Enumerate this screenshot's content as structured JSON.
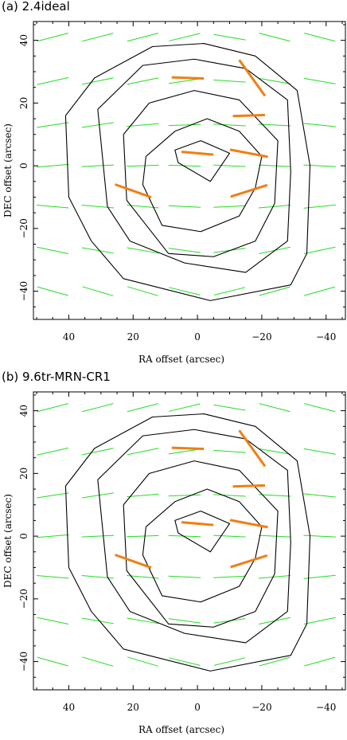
{
  "colors": {
    "frame": "#000000",
    "contour": "#000000",
    "vector_green": "#22dd22",
    "vector_orange": "#f07f13"
  },
  "chart_data": [
    {
      "id": "a",
      "type": "vector-contour map",
      "title": "(a) 2.4ideal",
      "xlabel": "RA offset (arcsec)",
      "ylabel": "DEC offset (arcsec)",
      "xlim": [
        51,
        -46
      ],
      "ylim": [
        -49,
        46
      ],
      "x_inverted": true,
      "x_ticks": [
        40,
        20,
        0,
        -20,
        -40
      ],
      "y_ticks": [
        40,
        20,
        0,
        -20,
        -40
      ],
      "contours": [
        [
          [
            7,
            5
          ],
          [
            -1,
            8
          ],
          [
            -10,
            4
          ],
          [
            -4,
            -5
          ],
          [
            -10,
            4
          ],
          [
            -1,
            8
          ],
          [
            7,
            5
          ],
          [
            6,
            1
          ],
          [
            -4,
            -5
          ]
        ],
        [
          [
            16,
            3
          ],
          [
            7,
            11
          ],
          [
            -3,
            15
          ],
          [
            -13,
            11
          ],
          [
            -20,
            3
          ],
          [
            -18,
            -7
          ],
          [
            -13,
            -16
          ],
          [
            -1,
            -21
          ],
          [
            11,
            -19
          ],
          [
            17,
            -6
          ],
          [
            16,
            3
          ]
        ],
        [
          [
            23,
            10
          ],
          [
            15,
            20
          ],
          [
            1,
            24
          ],
          [
            -13,
            21
          ],
          [
            -25,
            8
          ],
          [
            -24,
            -12
          ],
          [
            -18,
            -24
          ],
          [
            -5,
            -29
          ],
          [
            9,
            -28
          ],
          [
            22,
            -11
          ],
          [
            23,
            10
          ]
        ],
        [
          [
            31,
            18
          ],
          [
            17,
            32
          ],
          [
            1,
            34
          ],
          [
            -15,
            31
          ],
          [
            -28,
            21
          ],
          [
            -29,
            -2
          ],
          [
            -28,
            -24
          ],
          [
            -15,
            -34
          ],
          [
            4,
            -31
          ],
          [
            21,
            -24
          ],
          [
            28,
            -13
          ],
          [
            31,
            18
          ]
        ],
        [
          [
            41,
            16
          ],
          [
            32,
            28
          ],
          [
            14,
            38
          ],
          [
            -2,
            39
          ],
          [
            -18,
            35
          ],
          [
            -31,
            24
          ],
          [
            -35,
            0
          ],
          [
            -34,
            -28
          ],
          [
            -29,
            -38
          ],
          [
            -4,
            -43
          ],
          [
            23,
            -36
          ],
          [
            33,
            -24
          ],
          [
            40,
            -10
          ],
          [
            41,
            16
          ]
        ]
      ],
      "vectors_green": [
        [
          45,
          41,
          10,
          -15
        ],
        [
          45,
          27,
          10,
          -13
        ],
        [
          45,
          13,
          10,
          -9
        ],
        [
          45,
          0,
          10,
          -5
        ],
        [
          45,
          -13,
          10,
          5
        ],
        [
          45,
          -27,
          10,
          12
        ],
        [
          45,
          -40,
          10,
          16
        ],
        [
          31,
          41,
          10,
          -15
        ],
        [
          31,
          27,
          10,
          -12
        ],
        [
          31,
          13,
          10,
          -9
        ],
        [
          31,
          0,
          10,
          -3
        ],
        [
          31,
          -13,
          10,
          5
        ],
        [
          31,
          -27,
          10,
          10
        ],
        [
          31,
          -40,
          10,
          17
        ],
        [
          17,
          41,
          10,
          -15
        ],
        [
          17,
          27,
          10,
          -12
        ],
        [
          17,
          13,
          10,
          -5
        ],
        [
          17,
          0,
          10,
          -2
        ],
        [
          17,
          -13,
          10,
          5
        ],
        [
          17,
          -27,
          10,
          10
        ],
        [
          17,
          -40,
          10,
          17
        ],
        [
          4,
          41,
          10,
          -14
        ],
        [
          4,
          27,
          10,
          -9
        ],
        [
          4,
          13,
          10,
          -2
        ],
        [
          4,
          0,
          10,
          2
        ],
        [
          4,
          -13,
          10,
          3
        ],
        [
          4,
          -27,
          10,
          8
        ],
        [
          4,
          -40,
          10,
          14
        ],
        [
          -10,
          41,
          10,
          10
        ],
        [
          -10,
          27,
          10,
          4
        ],
        [
          -10,
          13,
          10,
          3
        ],
        [
          -10,
          0,
          10,
          3
        ],
        [
          -10,
          -13,
          10,
          -3
        ],
        [
          -10,
          -27,
          10,
          -8
        ],
        [
          -10,
          -40,
          10,
          -14
        ],
        [
          -24,
          41,
          10,
          15
        ],
        [
          -24,
          27,
          10,
          10
        ],
        [
          -24,
          13,
          10,
          3
        ],
        [
          -24,
          0,
          10,
          3
        ],
        [
          -24,
          -13,
          10,
          -5
        ],
        [
          -24,
          -27,
          10,
          -12
        ],
        [
          -24,
          -40,
          10,
          -16
        ],
        [
          -38,
          41,
          10,
          15
        ],
        [
          -38,
          27,
          10,
          10
        ],
        [
          -38,
          13,
          10,
          6
        ],
        [
          -38,
          0,
          10,
          3
        ],
        [
          -38,
          -13,
          10,
          -6
        ],
        [
          -38,
          -27,
          10,
          -12
        ],
        [
          -38,
          -40,
          10,
          -16
        ]
      ],
      "vectors_orange": [
        [
          3,
          28,
          10,
          2
        ],
        [
          -17,
          28,
          14,
          55
        ],
        [
          -16,
          16,
          10,
          -2
        ],
        [
          0,
          4,
          10,
          5
        ],
        [
          -16,
          4,
          12,
          11
        ],
        [
          20,
          -8,
          12,
          20
        ],
        [
          -16,
          -8,
          12,
          -18
        ]
      ]
    },
    {
      "id": "b",
      "type": "vector-contour map",
      "title": "(b) 9.6tr-MRN-CR1",
      "xlabel": "RA offset (arcsec)",
      "ylabel": "DEC offset (arcsec)",
      "xlim": [
        51,
        -46
      ],
      "ylim": [
        -49,
        46
      ],
      "x_inverted": true,
      "x_ticks": [
        40,
        20,
        0,
        -20,
        -40
      ],
      "y_ticks": [
        40,
        20,
        0,
        -20,
        -40
      ],
      "contours": [
        [
          [
            7,
            5
          ],
          [
            -1,
            8
          ],
          [
            -10,
            4
          ],
          [
            -4,
            -5
          ],
          [
            -10,
            4
          ],
          [
            -1,
            8
          ],
          [
            7,
            5
          ],
          [
            6,
            1
          ],
          [
            -4,
            -5
          ]
        ],
        [
          [
            16,
            3
          ],
          [
            7,
            11
          ],
          [
            -3,
            15
          ],
          [
            -13,
            11
          ],
          [
            -20,
            3
          ],
          [
            -18,
            -7
          ],
          [
            -13,
            -16
          ],
          [
            -1,
            -21
          ],
          [
            11,
            -19
          ],
          [
            17,
            -6
          ],
          [
            16,
            3
          ]
        ],
        [
          [
            23,
            10
          ],
          [
            15,
            20
          ],
          [
            1,
            24
          ],
          [
            -13,
            21
          ],
          [
            -25,
            8
          ],
          [
            -24,
            -12
          ],
          [
            -18,
            -24
          ],
          [
            -5,
            -29
          ],
          [
            9,
            -28
          ],
          [
            22,
            -11
          ],
          [
            23,
            10
          ]
        ],
        [
          [
            31,
            18
          ],
          [
            17,
            32
          ],
          [
            1,
            34
          ],
          [
            -15,
            31
          ],
          [
            -28,
            21
          ],
          [
            -29,
            -2
          ],
          [
            -28,
            -24
          ],
          [
            -15,
            -34
          ],
          [
            4,
            -31
          ],
          [
            21,
            -24
          ],
          [
            28,
            -13
          ],
          [
            31,
            18
          ]
        ],
        [
          [
            41,
            16
          ],
          [
            32,
            28
          ],
          [
            14,
            38
          ],
          [
            -2,
            39
          ],
          [
            -18,
            35
          ],
          [
            -31,
            24
          ],
          [
            -35,
            0
          ],
          [
            -34,
            -28
          ],
          [
            -29,
            -38
          ],
          [
            -4,
            -43
          ],
          [
            23,
            -36
          ],
          [
            33,
            -24
          ],
          [
            40,
            -10
          ],
          [
            41,
            16
          ]
        ]
      ],
      "vectors_green": [
        [
          45,
          41,
          10,
          -15
        ],
        [
          45,
          27,
          10,
          -13
        ],
        [
          45,
          13,
          10,
          -9
        ],
        [
          45,
          0,
          10,
          -5
        ],
        [
          45,
          -13,
          10,
          5
        ],
        [
          45,
          -27,
          10,
          12
        ],
        [
          45,
          -40,
          10,
          16
        ],
        [
          31,
          41,
          10,
          -15
        ],
        [
          31,
          27,
          10,
          -12
        ],
        [
          31,
          13,
          10,
          -9
        ],
        [
          31,
          0,
          10,
          -3
        ],
        [
          31,
          -13,
          10,
          5
        ],
        [
          31,
          -27,
          10,
          10
        ],
        [
          31,
          -40,
          10,
          17
        ],
        [
          17,
          41,
          10,
          -15
        ],
        [
          17,
          27,
          10,
          -12
        ],
        [
          17,
          13,
          10,
          -5
        ],
        [
          17,
          0,
          10,
          -2
        ],
        [
          17,
          -13,
          10,
          5
        ],
        [
          17,
          -27,
          10,
          10
        ],
        [
          17,
          -40,
          10,
          17
        ],
        [
          4,
          41,
          10,
          -14
        ],
        [
          4,
          27,
          10,
          -9
        ],
        [
          4,
          13,
          10,
          -2
        ],
        [
          4,
          0,
          10,
          2
        ],
        [
          4,
          -13,
          10,
          3
        ],
        [
          4,
          -27,
          10,
          8
        ],
        [
          4,
          -40,
          10,
          14
        ],
        [
          -10,
          41,
          10,
          10
        ],
        [
          -10,
          27,
          10,
          4
        ],
        [
          -10,
          13,
          10,
          3
        ],
        [
          -10,
          0,
          10,
          3
        ],
        [
          -10,
          -13,
          10,
          -3
        ],
        [
          -10,
          -27,
          10,
          -8
        ],
        [
          -10,
          -40,
          10,
          -14
        ],
        [
          -24,
          41,
          10,
          15
        ],
        [
          -24,
          27,
          10,
          10
        ],
        [
          -24,
          13,
          10,
          3
        ],
        [
          -24,
          0,
          10,
          3
        ],
        [
          -24,
          -13,
          10,
          -5
        ],
        [
          -24,
          -27,
          10,
          -12
        ],
        [
          -24,
          -40,
          10,
          -16
        ],
        [
          -38,
          41,
          10,
          15
        ],
        [
          -38,
          27,
          10,
          10
        ],
        [
          -38,
          13,
          10,
          6
        ],
        [
          -38,
          0,
          10,
          3
        ],
        [
          -38,
          -13,
          10,
          -6
        ],
        [
          -38,
          -27,
          10,
          -12
        ],
        [
          -38,
          -40,
          10,
          -16
        ]
      ],
      "vectors_orange": [
        [
          3,
          28,
          10,
          2
        ],
        [
          -17,
          28,
          14,
          55
        ],
        [
          -16,
          16,
          10,
          -2
        ],
        [
          0,
          4,
          10,
          5
        ],
        [
          -16,
          4,
          12,
          11
        ],
        [
          20,
          -8,
          12,
          20
        ],
        [
          -16,
          -8,
          12,
          -18
        ]
      ]
    }
  ]
}
